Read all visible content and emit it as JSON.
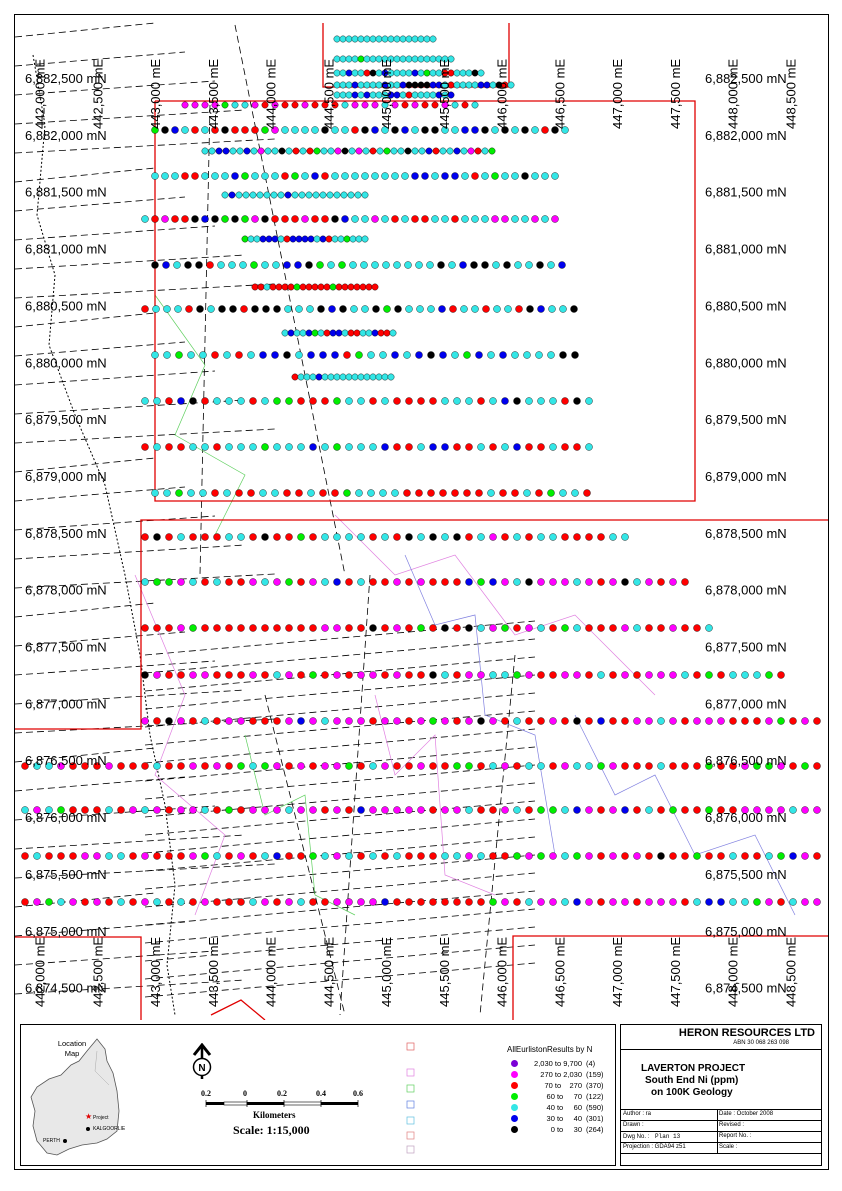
{
  "map": {
    "easting_labels": [
      "442,000 mE",
      "442,500 mE",
      "443,000 mE",
      "443,500 mE",
      "444,000 mE",
      "444,500 mE",
      "445,000 mE",
      "445,500 mE",
      "446,000 mE",
      "446,500 mE",
      "447,000 mE",
      "447,500 mE",
      "448,000 mE",
      "448,500 mE"
    ],
    "northing_labels": [
      "6,882,500 mN",
      "6,882,000 mN",
      "6,881,500 mN",
      "6,881,000 mN",
      "6,880,500 mN",
      "6,880,000 mN",
      "6,879,500 mN",
      "6,879,000 mN",
      "6,878,500 mN",
      "6,878,000 mN",
      "6,877,500 mN",
      "6,877,000 mN",
      "6,876,500 mN",
      "6,876,000 mN",
      "6,875,500 mN",
      "6,875,000 mN",
      "6,874,500 mN"
    ]
  },
  "location_map": {
    "title": "Location\nMap",
    "title_line1": "Location",
    "title_line2": "Map",
    "project_label": "Project",
    "kalgoorlie_label": "KALGOORLIE",
    "perth_label": "PERTH"
  },
  "north_arrow": {
    "letter": "N"
  },
  "scalebar": {
    "ticks": [
      "0.2",
      "0",
      "0.2",
      "0.4",
      "0.6"
    ],
    "unit": "Kilometers",
    "scale_text": "Scale: 1:15,000"
  },
  "legend": {
    "title": "AllEurlistonResults by N",
    "entries": [
      {
        "label": "2,030 to 9,700",
        "count": "(4)",
        "color": "#7b00d6"
      },
      {
        "label": "270 to 2,030",
        "count": "(159)",
        "color": "#ff00ff"
      },
      {
        "label": "70 to    270",
        "count": "(370)",
        "color": "#ff0000"
      },
      {
        "label": "60 to     70",
        "count": "(122)",
        "color": "#00ee00"
      },
      {
        "label": "40 to     60",
        "count": "(590)",
        "color": "#33e6e6"
      },
      {
        "label": "30 to     40",
        "count": "(301)",
        "color": "#0000ee"
      },
      {
        "label": "0 to     30",
        "count": "(264)",
        "color": "#000000"
      }
    ]
  },
  "title_block": {
    "company": "HERON RESOURCES LTD",
    "abn": "ABN 30 068 263 098",
    "project": "LAVERTON PROJECT",
    "subtitle1": "South End Ni (ppm)",
    "subtitle2": "on 100K Geology",
    "author_label": "Author : ra",
    "date_label": "Date : October 2008",
    "drawn_label": "Drawn :",
    "revised_label": "Revised :",
    "dwg_label": "Dwg No. :",
    "dwg_value": "Plan 13",
    "report_label": "Report No. :",
    "projection_label": "Projection : GDA94 z51",
    "scale_label": "Scale :"
  }
}
